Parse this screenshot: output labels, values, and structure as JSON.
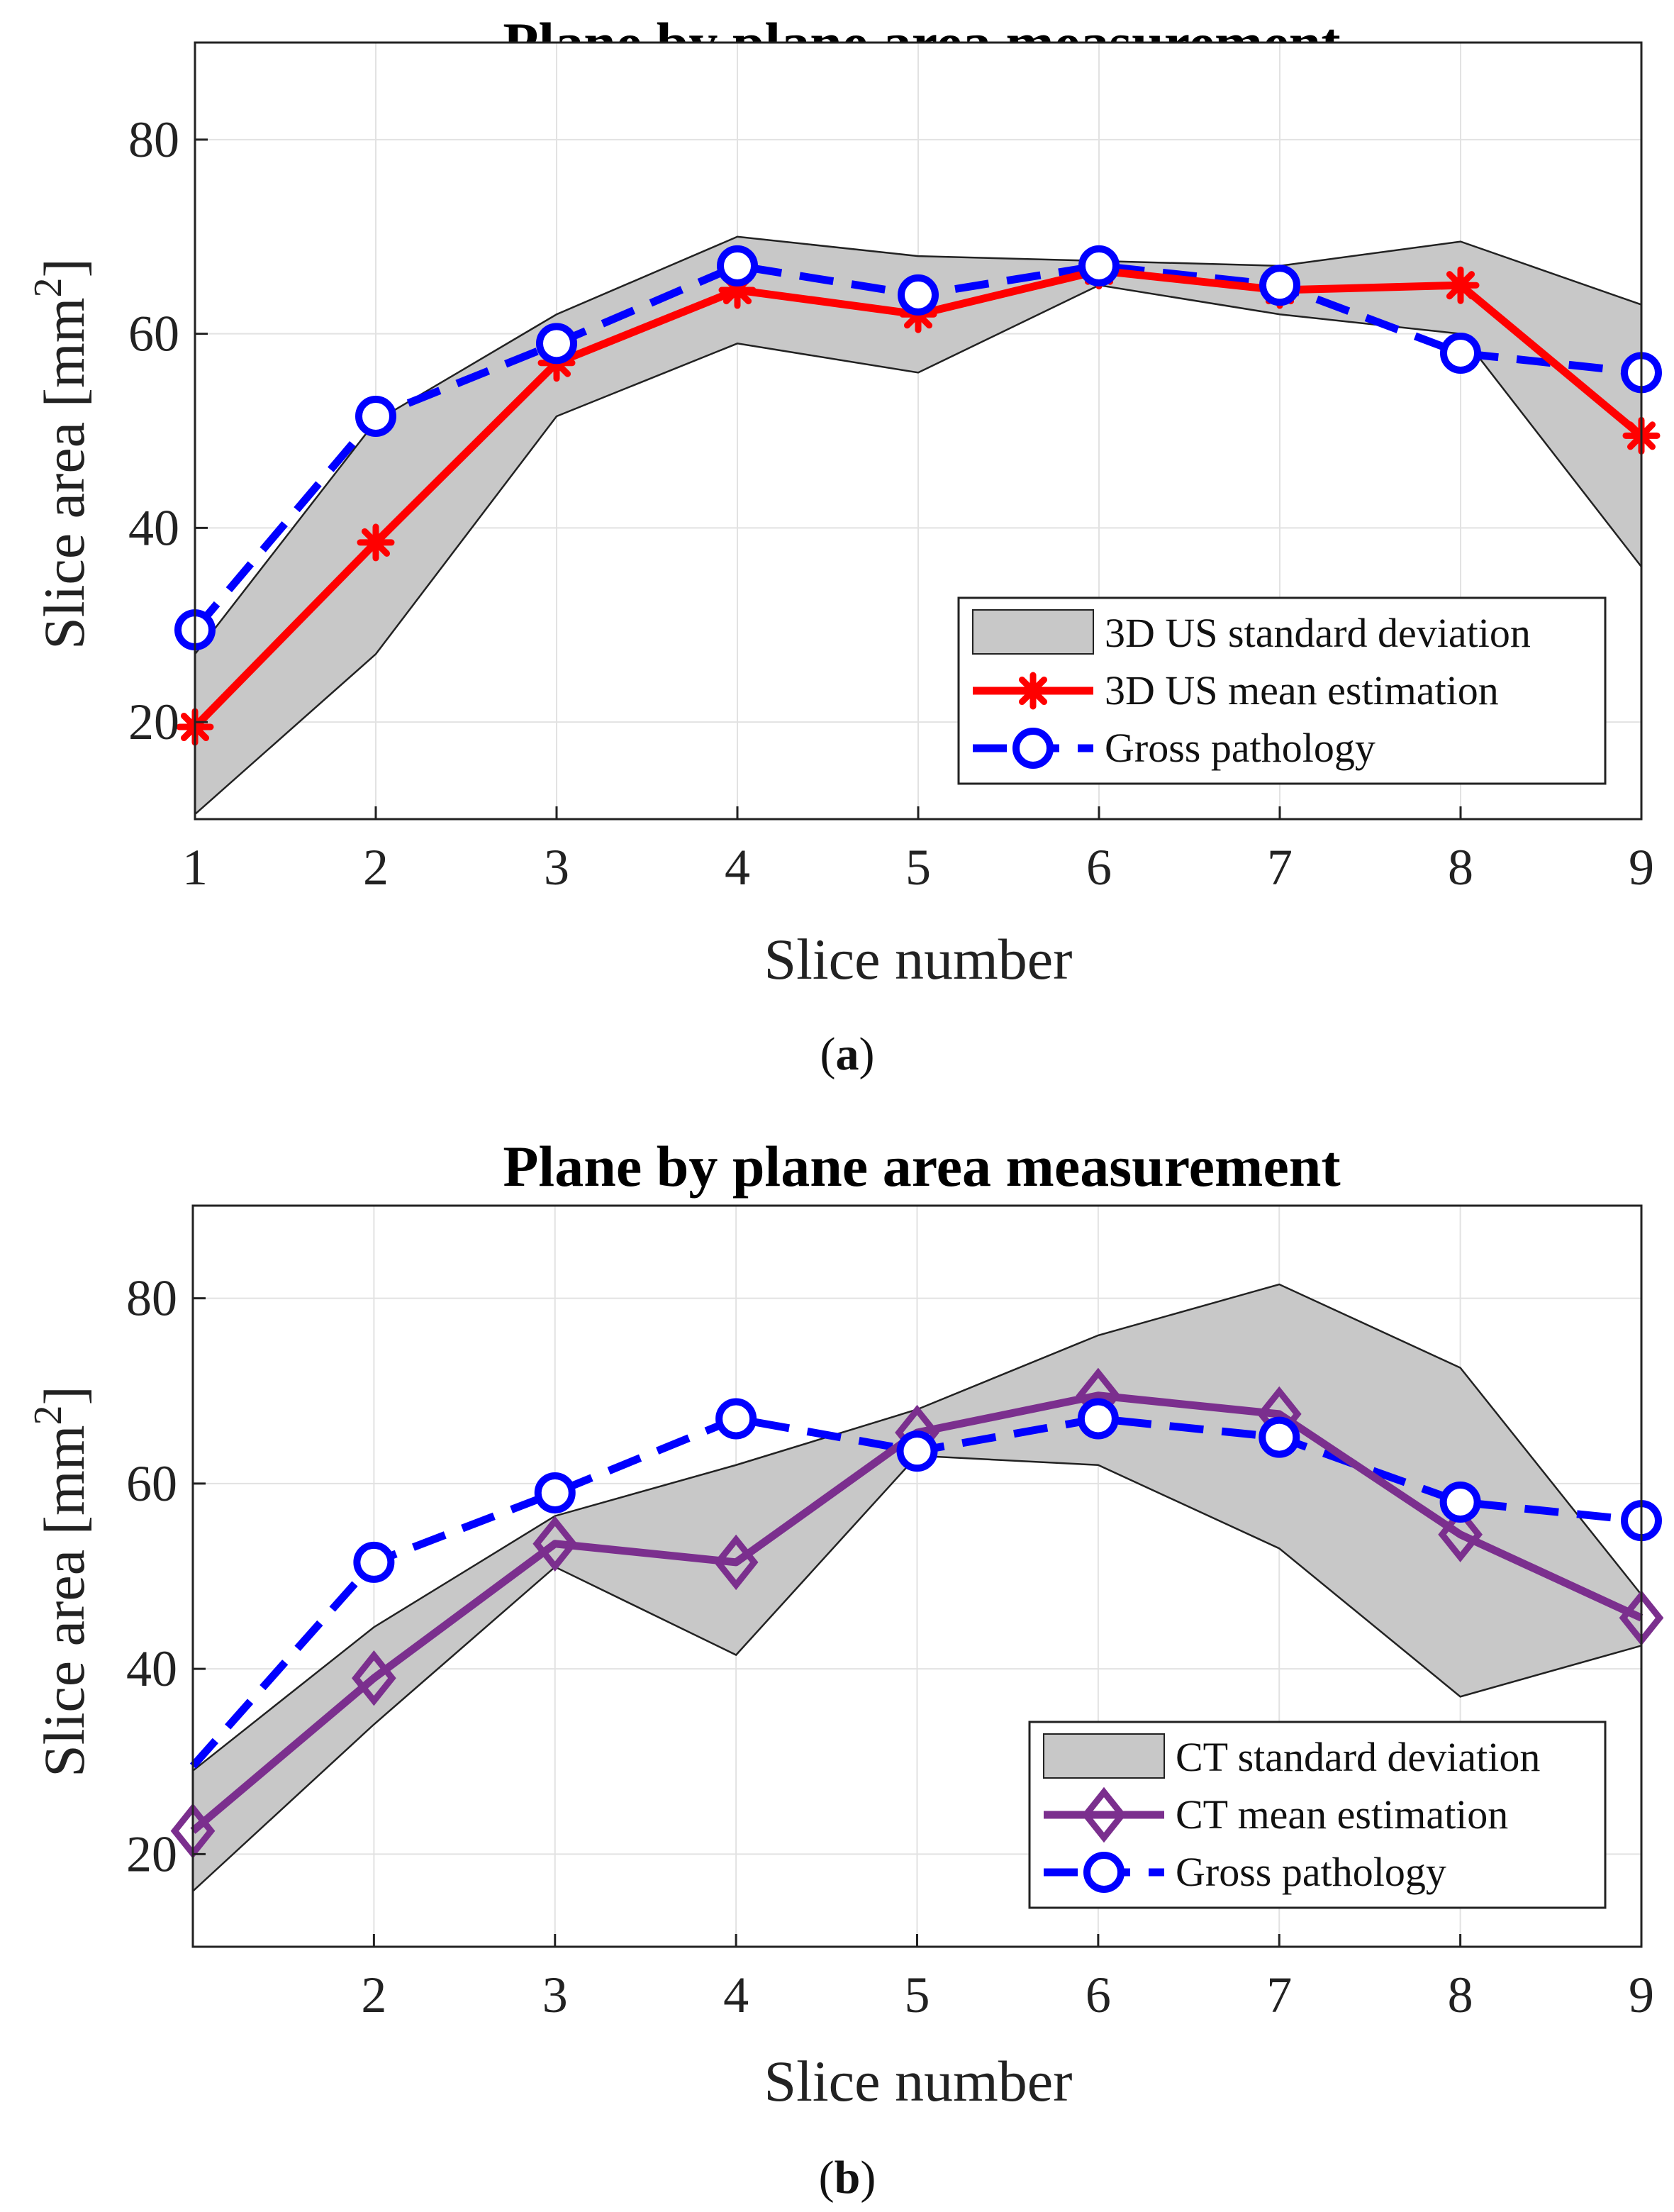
{
  "chart_data": [
    {
      "type": "line",
      "panel_label": "a",
      "title": "Plane by plane area measurement",
      "xlabel": "Slice number",
      "ylabel": "Slice area [mm",
      "ylabel_sup": "2",
      "ylabel_close": "]",
      "xlim": [
        1,
        9
      ],
      "ylim": [
        10,
        90
      ],
      "x_ticks": [
        1,
        2,
        3,
        4,
        5,
        6,
        7,
        8,
        9
      ],
      "y_ticks": [
        20,
        40,
        60,
        80
      ],
      "grid": true,
      "legend_position": "bottom-right",
      "x": [
        1,
        2,
        3,
        4,
        5,
        6,
        7,
        8,
        9
      ],
      "band": {
        "name": "3D US standard deviation",
        "color": "#c8c8c8",
        "upper": [
          27,
          51,
          62,
          70,
          68,
          67.5,
          67,
          69.5,
          63
        ],
        "lower": [
          10.5,
          27,
          51.5,
          59,
          56,
          65,
          62,
          60,
          36
        ]
      },
      "series": [
        {
          "name": "3D US mean estimation",
          "color": "#ff0000",
          "marker": "asterisk",
          "dashed": false,
          "values": [
            19.5,
            38.5,
            57,
            64.5,
            62,
            66.5,
            64.5,
            65,
            49.5
          ]
        },
        {
          "name": "Gross pathology",
          "color": "#0000ff",
          "marker": "circle",
          "dashed": true,
          "values": [
            29.5,
            51.5,
            59,
            67,
            64,
            67,
            65,
            58,
            56
          ]
        }
      ]
    },
    {
      "type": "line",
      "panel_label": "b",
      "title": "Plane by plane area measurement",
      "xlabel": "Slice number",
      "ylabel": "Slice area [mm",
      "ylabel_sup": "2",
      "ylabel_close": "]",
      "xlim": [
        1,
        9
      ],
      "ylim": [
        10,
        90
      ],
      "x_ticks": [
        2,
        3,
        4,
        5,
        6,
        7,
        8,
        9
      ],
      "y_ticks": [
        20,
        40,
        60,
        80
      ],
      "grid": true,
      "legend_position": "bottom-right",
      "x": [
        1,
        2,
        3,
        4,
        5,
        6,
        7,
        8,
        9
      ],
      "band": {
        "name": "CT standard deviation",
        "color": "#c8c8c8",
        "upper": [
          29,
          44.5,
          56.5,
          62,
          68,
          76,
          81.5,
          72.5,
          48
        ],
        "lower": [
          16,
          34,
          51,
          41.5,
          63,
          62,
          53,
          37,
          42.5
        ]
      },
      "series": [
        {
          "name": "CT mean estimation",
          "color": "#7b2f8e",
          "marker": "diamond",
          "dashed": false,
          "values": [
            22.5,
            39,
            53.5,
            51.5,
            65.5,
            69.5,
            67.5,
            54.5,
            45.5
          ]
        },
        {
          "name": "Gross pathology",
          "color": "#0000ff",
          "marker": "circle",
          "dashed": true,
          "values": [
            29.5,
            51.5,
            59,
            67,
            63.5,
            67,
            65,
            58,
            56
          ]
        }
      ]
    }
  ]
}
